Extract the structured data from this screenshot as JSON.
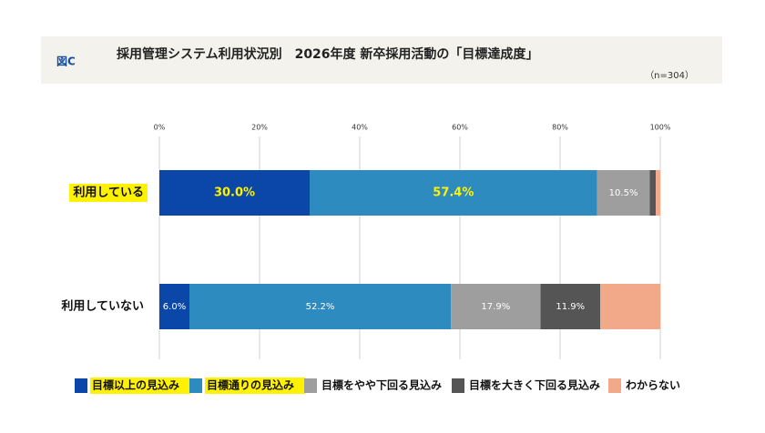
{
  "chart_data": {
    "type": "stacked_barh",
    "figure_label": "図C",
    "title": "採用管理システム利用状況別　2026年度 新卒採用活動の「目標達成度」",
    "note": "（n=304）",
    "categories": [
      "利用している",
      "利用していない"
    ],
    "xlim": [
      0,
      100
    ],
    "xticks": [
      {
        "value": 0,
        "label": "0%"
      },
      {
        "value": 20,
        "label": "20%"
      },
      {
        "value": 40,
        "label": "40%"
      },
      {
        "value": 60,
        "label": "60%"
      },
      {
        "value": 80,
        "label": "80%"
      },
      {
        "value": 100,
        "label": "100%"
      }
    ],
    "grid": true,
    "series": [
      {
        "name": "目標以上の見込み",
        "color": "#0a47a8",
        "values": [
          30.0,
          6.0
        ],
        "value_labels": [
          "30.0%",
          "6.0%"
        ]
      },
      {
        "name": "目標通りの見込み",
        "color": "#2e8bc0",
        "values": [
          57.4,
          52.2
        ],
        "value_labels": [
          "57.4%",
          "52.2%"
        ]
      },
      {
        "name": "目標をやや下回る見込み",
        "color": "#9e9e9e",
        "values": [
          10.5,
          17.9
        ],
        "value_labels": [
          "10.5%",
          "17.9%"
        ]
      },
      {
        "name": "目標を大きく下回る見込み",
        "color": "#555555",
        "values": [
          1.2,
          11.9
        ],
        "value_labels": [
          null,
          "11.9%"
        ]
      },
      {
        "name": "わからない",
        "color": "#f2a98a",
        "values": [
          0.9,
          12.0
        ],
        "value_labels": [
          null,
          null
        ]
      }
    ]
  }
}
